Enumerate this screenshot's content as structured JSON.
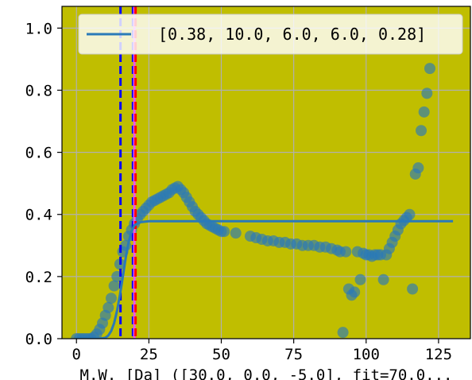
{
  "chart_data": {
    "type": "scatter",
    "title": "",
    "xlabel": "M.W. [Da] ([30.0, 0.0, -5.0], fit=70.0...",
    "ylabel": "",
    "xlim": [
      -5,
      136
    ],
    "ylim": [
      0,
      1.07
    ],
    "x_ticks": [
      0,
      25,
      50,
      75,
      100,
      125
    ],
    "y_ticks": [
      0.0,
      0.2,
      0.4,
      0.6,
      0.8,
      1.0
    ],
    "x_tick_labels": [
      "0",
      "25",
      "50",
      "75",
      "100",
      "125"
    ],
    "y_tick_labels": [
      "0.0",
      "0.2",
      "0.4",
      "0.6",
      "0.8",
      "1.0"
    ],
    "grid": true,
    "background_color": "#c0be00",
    "legend": {
      "position": "top-right",
      "entries": [
        {
          "label": "[0.38, 10.0, 6.0, 6.0, 0.28]",
          "color": "#2a7ab8"
        }
      ]
    },
    "colors": {
      "points": "#2a7ab8",
      "fit_line": "#2a7ab8",
      "vline_blue": "#0000ff",
      "vline_red": "#ff0000",
      "vline_magenta": "#ee55ee"
    },
    "fit_line": [
      [
        0,
        0
      ],
      [
        2,
        0
      ],
      [
        4,
        0
      ],
      [
        6,
        0
      ],
      [
        8,
        0
      ],
      [
        10,
        0.003
      ],
      [
        11,
        0.01
      ],
      [
        12,
        0.025
      ],
      [
        13,
        0.05
      ],
      [
        14,
        0.09
      ],
      [
        15,
        0.14
      ],
      [
        16,
        0.2
      ],
      [
        17,
        0.26
      ],
      [
        18,
        0.31
      ],
      [
        19,
        0.345
      ],
      [
        20,
        0.365
      ],
      [
        22,
        0.375
      ],
      [
        25,
        0.378
      ],
      [
        130,
        0.378
      ]
    ],
    "vlines": [
      {
        "x": 15.2,
        "color": "#0000ff",
        "style": "dashed"
      },
      {
        "x": 19.5,
        "color": "#0000ff",
        "style": "dashed"
      },
      {
        "x": 20.0,
        "color": "#ee55ee",
        "style": "solid"
      },
      {
        "x": 20.4,
        "color": "#ff0000",
        "style": "dashed"
      }
    ],
    "points": [
      [
        0,
        0
      ],
      [
        1,
        0
      ],
      [
        2,
        0
      ],
      [
        3,
        0
      ],
      [
        4,
        0
      ],
      [
        5,
        0
      ],
      [
        6,
        0.005
      ],
      [
        7,
        0.015
      ],
      [
        8,
        0.03
      ],
      [
        9,
        0.05
      ],
      [
        10,
        0.075
      ],
      [
        11,
        0.1
      ],
      [
        12,
        0.13
      ],
      [
        13,
        0.17
      ],
      [
        14,
        0.2
      ],
      [
        15,
        0.24
      ],
      [
        16,
        0.28
      ],
      [
        17,
        0.3
      ],
      [
        18,
        0.33
      ],
      [
        19,
        0.35
      ],
      [
        20,
        0.37
      ],
      [
        21,
        0.385
      ],
      [
        22,
        0.4
      ],
      [
        23,
        0.41
      ],
      [
        24,
        0.42
      ],
      [
        25,
        0.43
      ],
      [
        26,
        0.44
      ],
      [
        27,
        0.445
      ],
      [
        28,
        0.45
      ],
      [
        29,
        0.455
      ],
      [
        30,
        0.46
      ],
      [
        31,
        0.465
      ],
      [
        32,
        0.47
      ],
      [
        33,
        0.48
      ],
      [
        34,
        0.485
      ],
      [
        35,
        0.49
      ],
      [
        36,
        0.48
      ],
      [
        37,
        0.47
      ],
      [
        38,
        0.455
      ],
      [
        39,
        0.44
      ],
      [
        40,
        0.425
      ],
      [
        41,
        0.41
      ],
      [
        42,
        0.4
      ],
      [
        43,
        0.39
      ],
      [
        44,
        0.38
      ],
      [
        45,
        0.37
      ],
      [
        46,
        0.365
      ],
      [
        47,
        0.36
      ],
      [
        48,
        0.355
      ],
      [
        49,
        0.35
      ],
      [
        50,
        0.345
      ],
      [
        51,
        0.345
      ],
      [
        55,
        0.34
      ],
      [
        60,
        0.33
      ],
      [
        62,
        0.325
      ],
      [
        64,
        0.32
      ],
      [
        66,
        0.315
      ],
      [
        68,
        0.315
      ],
      [
        70,
        0.31
      ],
      [
        72,
        0.31
      ],
      [
        74,
        0.305
      ],
      [
        76,
        0.305
      ],
      [
        78,
        0.3
      ],
      [
        80,
        0.3
      ],
      [
        82,
        0.3
      ],
      [
        84,
        0.295
      ],
      [
        86,
        0.295
      ],
      [
        88,
        0.29
      ],
      [
        90,
        0.285
      ],
      [
        91,
        0.28
      ],
      [
        92,
        0.02
      ],
      [
        93,
        0.28
      ],
      [
        94,
        0.16
      ],
      [
        95,
        0.14
      ],
      [
        96,
        0.15
      ],
      [
        97,
        0.28
      ],
      [
        98,
        0.19
      ],
      [
        99,
        0.275
      ],
      [
        100,
        0.27
      ],
      [
        101,
        0.27
      ],
      [
        102,
        0.265
      ],
      [
        103,
        0.27
      ],
      [
        104,
        0.27
      ],
      [
        105,
        0.27
      ],
      [
        106,
        0.19
      ],
      [
        107,
        0.27
      ],
      [
        108,
        0.29
      ],
      [
        109,
        0.31
      ],
      [
        110,
        0.33
      ],
      [
        111,
        0.35
      ],
      [
        112,
        0.37
      ],
      [
        113,
        0.38
      ],
      [
        114,
        0.39
      ],
      [
        115,
        0.4
      ],
      [
        116,
        0.16
      ],
      [
        117,
        0.53
      ],
      [
        118,
        0.55
      ],
      [
        119,
        0.67
      ],
      [
        120,
        0.73
      ],
      [
        121,
        0.79
      ],
      [
        122,
        0.87
      ]
    ]
  }
}
